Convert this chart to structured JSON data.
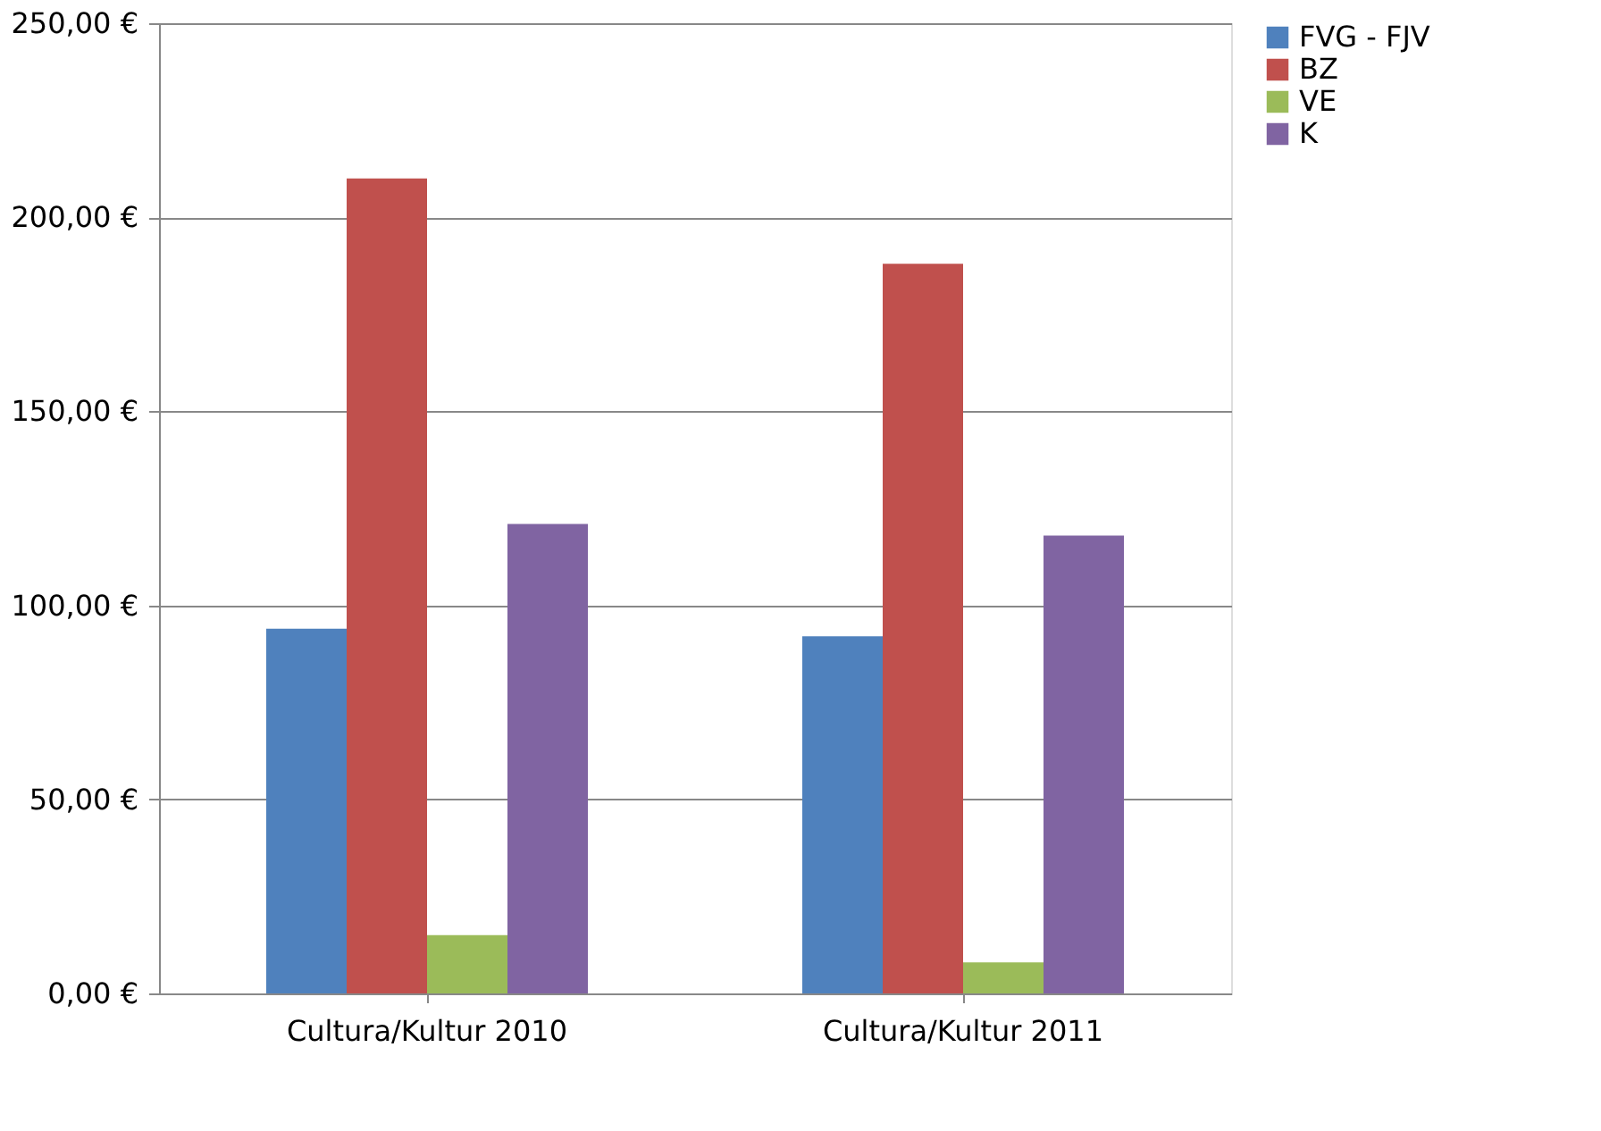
{
  "chart_data": {
    "type": "bar",
    "categories": [
      "Cultura/Kultur 2010",
      "Cultura/Kultur 2011"
    ],
    "series": [
      {
        "name": "FVG - FJV",
        "color": "#4f81bd",
        "values": [
          94,
          92
        ]
      },
      {
        "name": "BZ",
        "color": "#c0504d",
        "values": [
          210,
          188
        ]
      },
      {
        "name": "VE",
        "color": "#9bbb59",
        "values": [
          15,
          8
        ]
      },
      {
        "name": "K",
        "color": "#8064a2",
        "values": [
          121,
          118
        ]
      }
    ],
    "ylim": [
      0,
      250
    ],
    "yticks": [
      {
        "value": 0,
        "label": "0,00 €"
      },
      {
        "value": 50,
        "label": "50,00 €"
      },
      {
        "value": 100,
        "label": "100,00 €"
      },
      {
        "value": 150,
        "label": "150,00 €"
      },
      {
        "value": 200,
        "label": "200,00 €"
      },
      {
        "value": 250,
        "label": "250,00 €"
      }
    ],
    "grid": "y",
    "legend": "right"
  }
}
